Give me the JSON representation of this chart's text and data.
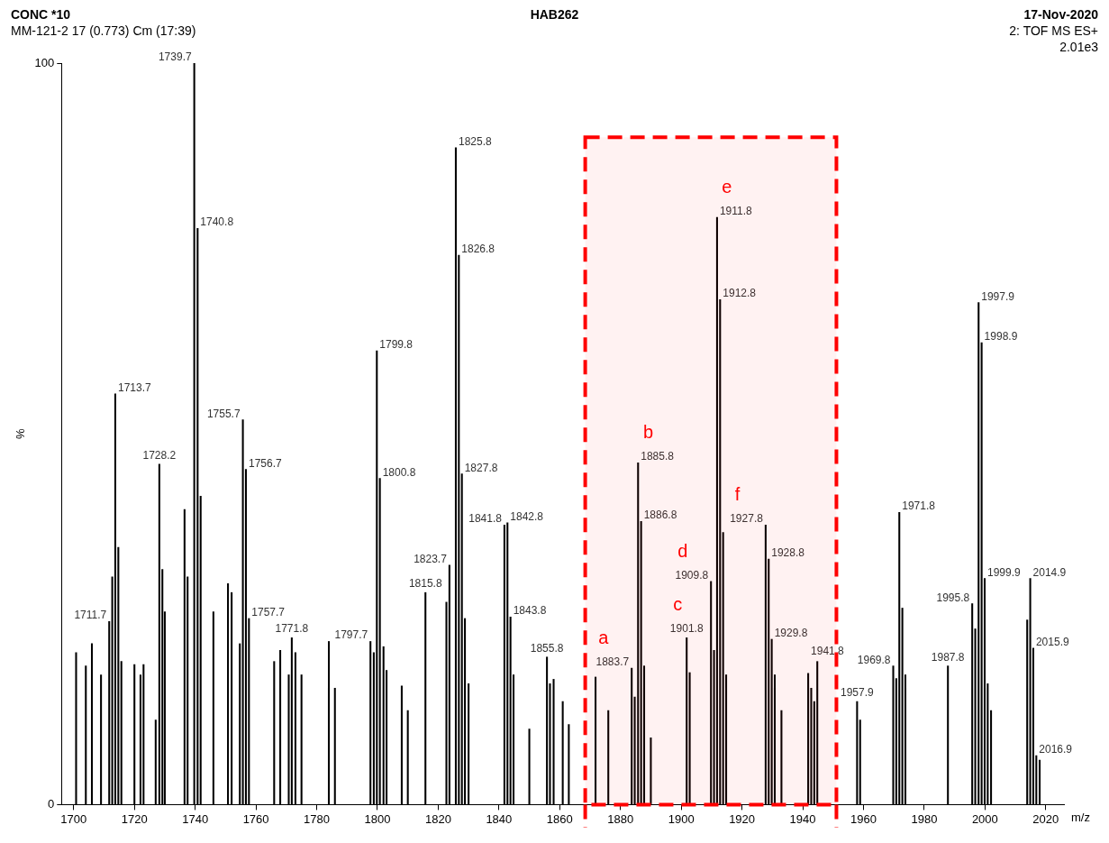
{
  "chart_data": {
    "type": "bar",
    "title": "HAB262",
    "subtitle": "MM-121-2 17 (0.773) Cm (17:39)",
    "xlabel": "m/z",
    "ylabel": "%",
    "annotations": [
      "CONC *10",
      "17-Nov-2020",
      "2: TOF MS ES+",
      "2.01e3",
      {
        "text": "1711.7",
        "x": 1711.7,
        "y": 24.7
      },
      {
        "text": "1713.7",
        "x": 1713.7,
        "y": 55.4
      },
      {
        "text": "1728.2",
        "x": 1728.2,
        "y": 45.9
      },
      {
        "text": "1739.7",
        "x": 1739.7,
        "y": 100
      },
      {
        "text": "1740.8",
        "x": 1740.8,
        "y": 77.7
      },
      {
        "text": "1755.7",
        "x": 1755.7,
        "y": 51.9
      },
      {
        "text": "1756.7",
        "x": 1756.7,
        "y": 45.2
      },
      {
        "text": "1757.7",
        "x": 1757.7,
        "y": 25.1
      },
      {
        "text": "1771.8",
        "x": 1771.8,
        "y": 22.5
      },
      {
        "text": "1797.7",
        "x": 1797.7,
        "y": 22
      },
      {
        "text": "1799.8",
        "x": 1799.8,
        "y": 61.2
      },
      {
        "text": "1800.8",
        "x": 1800.8,
        "y": 44
      },
      {
        "text": "1815.8",
        "x": 1815.8,
        "y": 28.6
      },
      {
        "text": "1823.7",
        "x": 1823.7,
        "y": 32.3
      },
      {
        "text": "1825.8",
        "x": 1825.8,
        "y": 88.6
      },
      {
        "text": "1826.8",
        "x": 1826.8,
        "y": 74.1
      },
      {
        "text": "1827.8",
        "x": 1827.8,
        "y": 44.6
      },
      {
        "text": "1841.8",
        "x": 1841.8,
        "y": 37.7
      },
      {
        "text": "1842.8",
        "x": 1842.8,
        "y": 38
      },
      {
        "text": "1843.8",
        "x": 1843.8,
        "y": 25.3
      },
      {
        "text": "1855.8",
        "x": 1855.8,
        "y": 19.9
      },
      {
        "text": "1883.7",
        "x": 1883.7,
        "y": 18.4
      },
      {
        "text": "1885.8",
        "x": 1885.8,
        "y": 46.1
      },
      {
        "text": "1886.8",
        "x": 1886.8,
        "y": 38.2
      },
      {
        "text": "1901.8",
        "x": 1901.8,
        "y": 22.5
      },
      {
        "text": "1909.8",
        "x": 1909.8,
        "y": 30.1
      },
      {
        "text": "1911.8",
        "x": 1911.8,
        "y": 79.2
      },
      {
        "text": "1912.8",
        "x": 1912.8,
        "y": 68.1
      },
      {
        "text": "1927.8",
        "x": 1927.8,
        "y": 37.7
      },
      {
        "text": "1928.8",
        "x": 1928.8,
        "y": 33.1
      },
      {
        "text": "1929.8",
        "x": 1929.8,
        "y": 22.3
      },
      {
        "text": "1941.8",
        "x": 1941.8,
        "y": 17.7
      },
      {
        "text": "1957.9",
        "x": 1957.9,
        "y": 13.9
      },
      {
        "text": "1969.8",
        "x": 1969.8,
        "y": 18.7
      },
      {
        "text": "1971.8",
        "x": 1971.8,
        "y": 39.4
      },
      {
        "text": "1987.8",
        "x": 1987.8,
        "y": 18.7
      },
      {
        "text": "1995.8",
        "x": 1995.8,
        "y": 27.1
      },
      {
        "text": "1997.9",
        "x": 1997.9,
        "y": 67.7
      },
      {
        "text": "1998.9",
        "x": 1998.9,
        "y": 62.3
      },
      {
        "text": "1999.9",
        "x": 1999.9,
        "y": 30.5
      },
      {
        "text": "2014.9",
        "x": 2014.9,
        "y": 30.5
      },
      {
        "text": "2015.9",
        "x": 2015.9,
        "y": 21.1
      },
      {
        "text": "2016.9",
        "x": 2016.9,
        "y": 6.6
      },
      {
        "text": "a",
        "x": 1883.7,
        "y": 18.4
      },
      {
        "text": "b",
        "x": 1885.8,
        "y": 46.1
      },
      {
        "text": "c",
        "x": 1901.8,
        "y": 22.5
      },
      {
        "text": "d",
        "x": 1909.8,
        "y": 30.1
      },
      {
        "text": "e",
        "x": 1911.8,
        "y": 79.2
      },
      {
        "text": "f",
        "x": 1927.8,
        "y": 37.7
      }
    ],
    "x": [
      1700.8,
      1704,
      1706,
      1709,
      1711.7,
      1712.7,
      1713.7,
      1714.7,
      1715.7,
      1720,
      1722,
      1723,
      1727,
      1728.2,
      1729.2,
      1730,
      1736.5,
      1737.5,
      1739.7,
      1740.8,
      1741.8,
      1746,
      1750.8,
      1752,
      1754.7,
      1755.7,
      1756.7,
      1757.7,
      1766,
      1768,
      1770.8,
      1771.8,
      1773,
      1775,
      1784,
      1786,
      1797.7,
      1798.8,
      1799.8,
      1800.8,
      1802,
      1803,
      1808,
      1810,
      1815.8,
      1822.7,
      1823.7,
      1825.8,
      1826.8,
      1827.8,
      1828.8,
      1830,
      1841.8,
      1842.8,
      1843.8,
      1844.8,
      1850,
      1855.8,
      1856.8,
      1858,
      1861,
      1863,
      1871.8,
      1876,
      1883.7,
      1884.7,
      1885.8,
      1886.8,
      1887.8,
      1890,
      1901.8,
      1902.8,
      1909.8,
      1910.8,
      1911.8,
      1912.8,
      1913.8,
      1914.8,
      1927.8,
      1928.8,
      1929.8,
      1930.8,
      1933,
      1941.8,
      1942.8,
      1943.8,
      1944.8,
      1957.9,
      1958.9,
      1969.8,
      1970.8,
      1971.8,
      1972.8,
      1973.8,
      1987.8,
      1995.8,
      1996.8,
      1997.9,
      1998.9,
      1999.9,
      2000.9,
      2002,
      2013.9,
      2014.9,
      2015.9,
      2016.9,
      2018
    ],
    "values": [
      20.5,
      18.7,
      21.7,
      17.5,
      24.7,
      30.7,
      55.4,
      34.7,
      19.3,
      18.9,
      17.5,
      18.9,
      11.4,
      45.9,
      31.7,
      26,
      39.8,
      30.7,
      100,
      77.7,
      41.6,
      26,
      29.8,
      28.6,
      21.7,
      51.9,
      45.2,
      25.1,
      19.3,
      20.8,
      17.5,
      22.5,
      20.5,
      17.5,
      22,
      15.7,
      22,
      20.5,
      61.2,
      44,
      21.3,
      18.1,
      16,
      12.7,
      28.6,
      27.3,
      32.3,
      88.6,
      74.1,
      44.6,
      25.1,
      16.3,
      37.7,
      38,
      25.3,
      17.5,
      10.2,
      19.9,
      16.3,
      16.9,
      13.9,
      10.8,
      17.2,
      12.7,
      18.4,
      14.5,
      46.1,
      38.2,
      18.7,
      9,
      22.5,
      17.8,
      30.1,
      20.8,
      79.2,
      68.1,
      36.7,
      17.5,
      37.7,
      33.1,
      22.3,
      17.5,
      12.7,
      17.7,
      15.7,
      13.9,
      19.3,
      13.9,
      11.4,
      18.7,
      17,
      39.4,
      26.5,
      17.5,
      18.7,
      27.1,
      23.7,
      67.7,
      62.3,
      30.5,
      16.3,
      12.7,
      24.9,
      30.5,
      21.1,
      6.6,
      6
    ],
    "color": "#000000",
    "xlim": [
      1696,
      2026
    ],
    "xticks": [
      1700,
      1720,
      1740,
      1760,
      1780,
      1800,
      1820,
      1840,
      1860,
      1880,
      1900,
      1920,
      1940,
      1960,
      1980,
      2000,
      2020
    ],
    "ylim": [
      0,
      100
    ],
    "yticks": [
      0,
      100
    ],
    "bands": [
      {
        "axis": "x",
        "from": 1868.4,
        "to": 1951.1,
        "color": "#ff0000"
      }
    ],
    "legend": false
  }
}
